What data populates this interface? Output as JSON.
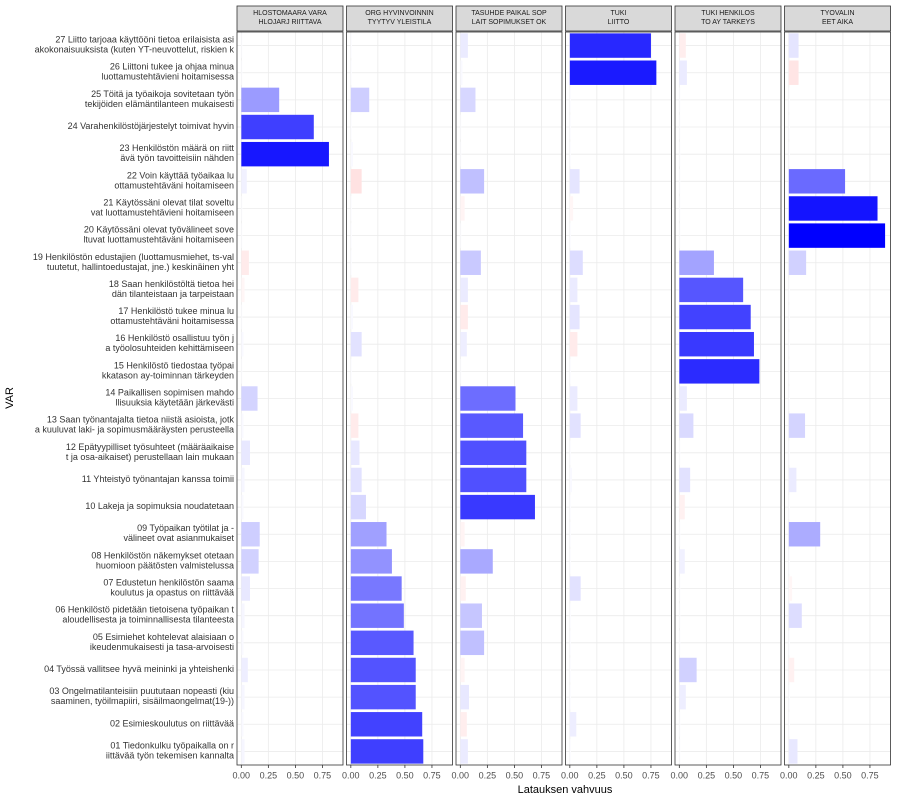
{
  "chart_data": {
    "type": "bar",
    "orientation": "horizontal",
    "x_label": "Latauksen vahvuus",
    "y_label": "VAR",
    "xlim": [
      -0.04,
      0.94
    ],
    "xticks": [
      {
        "value": 0,
        "label": "0.00"
      },
      {
        "value": 0.25,
        "label": "0.25"
      },
      {
        "value": 0.5,
        "label": "0.50"
      },
      {
        "value": 0.75,
        "label": "0.75"
      }
    ],
    "grid": true,
    "fill_gradient": {
      "low": "#ff0000",
      "mid": "#ffffff",
      "high": "#0000ff"
    },
    "categories": [
      [
        "27 Liitto tarjoaa käyttööni tietoa erilaisista asi",
        "akokonaisuuksista (kuten YT-neuvottelut, riskien k"
      ],
      [
        "26 Liittoni tukee ja ohjaa minua",
        "luottamustehtävieni hoitamisessa"
      ],
      [
        "25 Töitä ja työaikoja sovitetaan työn",
        "tekijöiden elämäntilanteen mukaisesti"
      ],
      [
        "24 Varahenkilöstöjärjestelyt toimivat hyvin"
      ],
      [
        "23 Henkilöstön määrä on riitt",
        "ävä työn tavoitteisiin nähden"
      ],
      [
        "22 Voin käyttää työaikaa lu",
        "ottamustehtäväni hoitamiseen"
      ],
      [
        "21 Käytössäni olevat tilat soveltu",
        "vat luottamustehtävieni hoitamiseen"
      ],
      [
        "20 Käytössäni olevat työvälineet sove",
        "ltuvat luottamustehtäväni hoitamiseen"
      ],
      [
        "19 Henkilöstön edustajien (luottamusmiehet, ts-val",
        "tuutetut, hallintoedustajat, jne.) keskinäinen yht"
      ],
      [
        "18 Saan henkilöstöltä tietoa hei",
        "dän tilanteistaan ja tarpeistaan"
      ],
      [
        "17 Henkilöstö tukee minua lu",
        "ottamustehtäväni hoitamisessa"
      ],
      [
        "16 Henkilöstö osallistuu työn j",
        "a työolosuhteiden kehittämiseen"
      ],
      [
        "15 Henkilöstö tiedostaa työpai",
        "kkatason ay-toiminnan tärkeyden"
      ],
      [
        "14 Paikallisen sopimisen mahdo",
        "llisuuksia käytetään järkevästi"
      ],
      [
        "13 Saan työnantajalta tietoa niistä asioista, jotk",
        "a kuuluvat laki- ja sopimusmääräysten perusteella"
      ],
      [
        "12 Epätyypilliset työsuhteet (määräaikaise",
        "t ja osa-aikaiset) perustellaan lain mukaan"
      ],
      [
        "11 Yhteistyö työnantajan kanssa toimii"
      ],
      [
        "10 Lakeja ja sopimuksia noudatetaan"
      ],
      [
        "09 Työpaikan työtilat ja -",
        "välineet ovat asianmukaiset"
      ],
      [
        "08 Henkilöstön näkemykset otetaan",
        "huomioon päätösten valmistelussa"
      ],
      [
        "07 Edustetun henkilöstön saama",
        "koulutus ja opastus on riittävää"
      ],
      [
        "06 Henkilöstö pidetään tietoisena työpaikan t",
        "aloudellisesta ja toiminnallisesta tilanteesta"
      ],
      [
        "05 Esimiehet kohtelevat alaisiaan o",
        "ikeudenmukaisesti ja tasa-arvoisesti"
      ],
      [
        "04 Työssä vallitsee hyvä meininki ja yhteishenki"
      ],
      [
        "03 Ongelmatilanteisiin puututaan nopeasti (kiu",
        "saaminen, työilmapiiri, sisäilmaongelmat(19-))"
      ],
      [
        "02 Esimieskoulutus on riittävää"
      ],
      [
        "01 Tiedonkulku työpaikalla on r",
        "iittävää työn tekemisen kannalta"
      ]
    ],
    "facets": [
      {
        "title": [
          "HLOSTOMAARA VARA",
          "HLOJARJ RIITTAVA"
        ],
        "values": [
          0.01,
          0.01,
          0.35,
          0.67,
          0.81,
          0.05,
          0.01,
          0.01,
          -0.07,
          -0.03,
          0.01,
          0.02,
          0.01,
          0.15,
          0.02,
          0.08,
          0.03,
          0.02,
          0.17,
          0.16,
          0.08,
          0.03,
          0.02,
          0.06,
          0.03,
          0.02,
          0.03
        ]
      },
      {
        "title": [
          "ORG HYVINVOINNIN",
          "TYYTYV YLEISTILA"
        ],
        "values": [
          0.01,
          0.01,
          0.17,
          0.01,
          0.02,
          -0.1,
          0.01,
          0.01,
          0.01,
          -0.07,
          0.02,
          0.1,
          0.01,
          0.02,
          -0.07,
          0.08,
          0.1,
          0.14,
          0.33,
          0.38,
          0.47,
          0.49,
          0.58,
          0.6,
          0.6,
          0.66,
          0.67
        ]
      },
      {
        "title": [
          "TASUHDE PAIKAL SOP",
          "LAIT SOPIMUKSET OK"
        ],
        "values": [
          0.07,
          0.02,
          0.14,
          0.01,
          0.01,
          0.22,
          -0.04,
          0.01,
          0.19,
          0.07,
          -0.07,
          0.06,
          0.01,
          0.51,
          0.58,
          0.61,
          0.61,
          0.69,
          -0.04,
          0.3,
          -0.05,
          0.2,
          0.22,
          -0.04,
          0.08,
          -0.06,
          0.07
        ]
      },
      {
        "title": [
          "TUKI",
          "LIITTO"
        ],
        "values": [
          0.75,
          0.8,
          0.01,
          0.01,
          0.01,
          0.09,
          -0.03,
          0.01,
          0.12,
          0.07,
          0.09,
          -0.07,
          0.01,
          0.07,
          0.1,
          0.01,
          0.02,
          0.01,
          0.01,
          0.01,
          0.1,
          0.01,
          0.01,
          0.01,
          0.01,
          0.06,
          0.01
        ]
      },
      {
        "title": [
          "TUKI HENKILOS",
          "TO AY TARKEYS"
        ],
        "values": [
          -0.06,
          0.07,
          0.01,
          0.01,
          0.01,
          0.01,
          0.01,
          0.01,
          0.32,
          0.59,
          0.66,
          0.69,
          0.74,
          0.07,
          0.13,
          0.01,
          0.1,
          -0.05,
          0.01,
          0.05,
          0.01,
          0.01,
          0.01,
          0.16,
          0.06,
          0.01,
          0.01
        ]
      },
      {
        "title": [
          "TYOVALIN",
          "EET AIKA"
        ],
        "values": [
          0.09,
          -0.09,
          0.01,
          0.01,
          0.01,
          0.52,
          0.82,
          0.89,
          0.16,
          0.01,
          0.01,
          0.01,
          0.01,
          0.01,
          0.15,
          0.01,
          0.07,
          0.01,
          0.29,
          0.01,
          -0.03,
          0.12,
          0.01,
          -0.05,
          0.01,
          0.01,
          0.08
        ]
      }
    ]
  }
}
